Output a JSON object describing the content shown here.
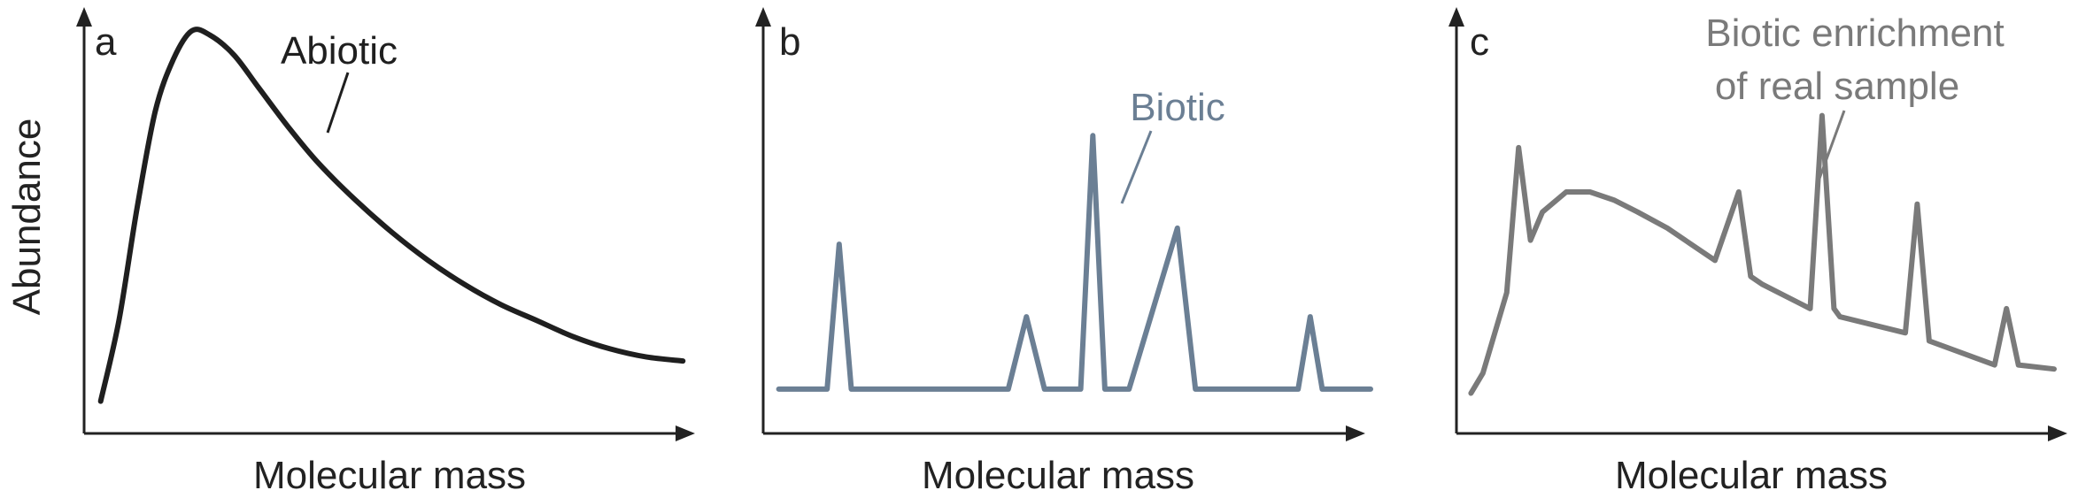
{
  "colors": {
    "axis": "#222222",
    "abiotic": "#1f1f1f",
    "biotic": "#6b7f94",
    "enrichment": "#7a7a7a",
    "background": "#ffffff"
  },
  "chart_data": [
    {
      "type": "line",
      "panel": "a",
      "title": "",
      "xlabel": "Molecular mass",
      "ylabel": "Abundance",
      "xlim": [
        0,
        100
      ],
      "ylim": [
        0,
        100
      ],
      "grid": false,
      "series": [
        {
          "name": "Abiotic",
          "x": [
            2,
            5,
            8,
            11,
            14,
            17,
            20,
            24,
            28,
            33,
            38,
            44,
            50,
            56,
            62,
            68,
            74,
            80,
            86,
            92,
            98
          ],
          "y": [
            8,
            28,
            56,
            80,
            93,
            100,
            99,
            94,
            86,
            76,
            67,
            58,
            50,
            43,
            37,
            32,
            28,
            24,
            21,
            19,
            18
          ]
        }
      ],
      "annotations": [
        {
          "text": "Abiotic",
          "target_series": "Abiotic"
        }
      ]
    },
    {
      "type": "line",
      "panel": "b",
      "title": "",
      "xlabel": "Molecular mass",
      "ylabel": "",
      "xlim": [
        0,
        100
      ],
      "ylim": [
        0,
        100
      ],
      "grid": false,
      "series": [
        {
          "name": "Biotic",
          "x": [
            2,
            10,
            12,
            14,
            40,
            43,
            46,
            52,
            54,
            56,
            60,
            68,
            71,
            74,
            76,
            88,
            90,
            92,
            100
          ],
          "y": [
            11,
            11,
            47,
            11,
            11,
            29,
            11,
            11,
            74,
            11,
            11,
            51,
            11,
            11,
            11,
            11,
            29,
            11,
            11
          ]
        }
      ],
      "annotations": [
        {
          "text": "Biotic",
          "target_series": "Biotic"
        }
      ]
    },
    {
      "type": "line",
      "panel": "c",
      "title": "",
      "xlabel": "Molecular mass",
      "ylabel": "",
      "xlim": [
        0,
        100
      ],
      "ylim": [
        0,
        100
      ],
      "grid": false,
      "series": [
        {
          "name": "Biotic enrichment of real sample",
          "x": [
            2,
            4,
            8,
            10,
            12,
            14,
            18,
            22,
            26,
            30,
            35,
            43,
            47,
            49,
            51,
            59,
            61,
            63,
            64,
            75,
            77,
            79,
            90,
            92,
            94,
            100
          ],
          "y": [
            10,
            15,
            35,
            71,
            48,
            55,
            60,
            60,
            58,
            55,
            51,
            43,
            60,
            39,
            37,
            31,
            79,
            31,
            29,
            25,
            57,
            23,
            17,
            31,
            17,
            16
          ]
        }
      ],
      "annotations": [
        {
          "text": "Biotic enrichment of real sample",
          "lines": [
            "Biotic enrichment",
            "of real sample"
          ],
          "target_series": "Biotic enrichment of real sample"
        }
      ]
    }
  ]
}
